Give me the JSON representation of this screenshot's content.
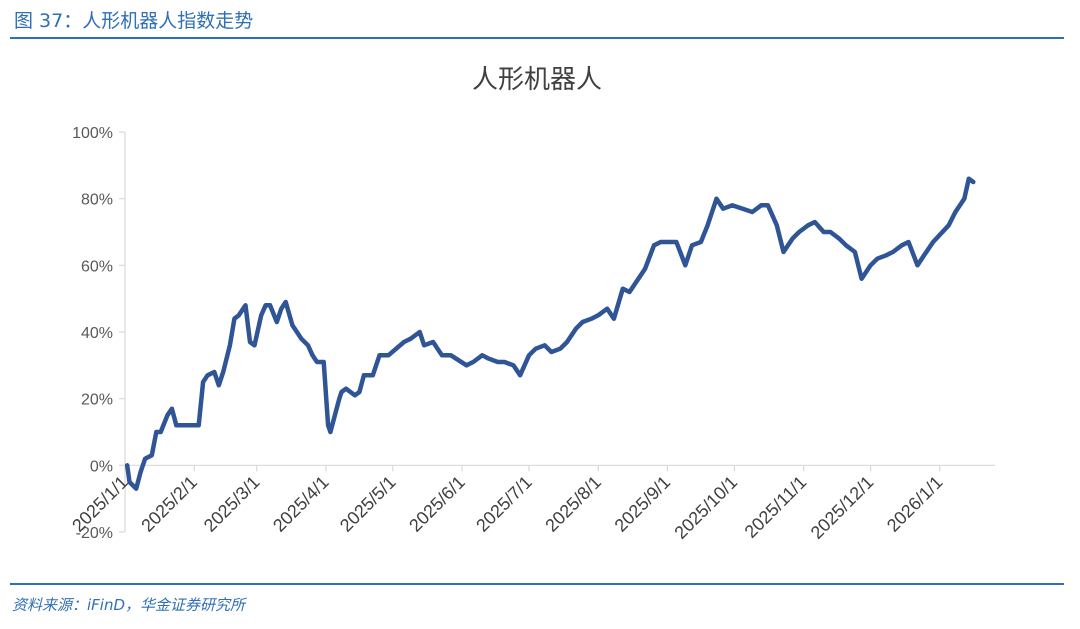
{
  "figure_label": "图 37：人形机器人指数走势",
  "source_note": "资料来源：iFinD，华金证券研究所",
  "colors": {
    "line": "#2f5597",
    "accent": "#2f6fb6",
    "axis": "#d9d9d9"
  },
  "chart_data": {
    "type": "line",
    "title": "人形机器人",
    "xlabel": "",
    "ylabel": "",
    "ylim": [
      -0.2,
      1.0
    ],
    "y_ticks": [
      -0.2,
      0.0,
      0.2,
      0.4,
      0.6,
      0.8,
      1.0
    ],
    "y_tick_labels": [
      "-20%",
      "0%",
      "20%",
      "40%",
      "60%",
      "80%",
      "100%"
    ],
    "x_ticks": [
      "2025/1/1",
      "2025/2/1",
      "2025/3/1",
      "2025/4/1",
      "2025/5/1",
      "2025/6/1",
      "2025/7/1",
      "2025/8/1",
      "2025/9/1",
      "2025/10/1",
      "2025/11/1",
      "2025/12/1",
      "2026/1/1"
    ],
    "grid": false,
    "legend": "none",
    "series": [
      {
        "x": [
          "2025/1/2",
          "2025/1/3",
          "2025/1/6",
          "2025/1/8",
          "2025/1/10",
          "2025/1/13",
          "2025/1/15",
          "2025/1/17",
          "2025/1/20",
          "2025/1/22",
          "2025/1/24",
          "2025/1/27",
          "2025/2/3",
          "2025/2/5",
          "2025/2/7",
          "2025/2/10",
          "2025/2/12",
          "2025/2/14",
          "2025/2/17",
          "2025/2/19",
          "2025/2/21",
          "2025/2/24",
          "2025/2/26",
          "2025/2/28",
          "2025/3/3",
          "2025/3/5",
          "2025/3/7",
          "2025/3/10",
          "2025/3/12",
          "2025/3/14",
          "2025/3/17",
          "2025/3/19",
          "2025/3/21",
          "2025/3/24",
          "2025/3/26",
          "2025/3/28",
          "2025/3/31",
          "2025/4/2",
          "2025/4/3",
          "2025/4/7",
          "2025/4/8",
          "2025/4/10",
          "2025/4/14",
          "2025/4/16",
          "2025/4/18",
          "2025/4/22",
          "2025/4/25",
          "2025/4/29",
          "2025/5/6",
          "2025/5/9",
          "2025/5/13",
          "2025/5/15",
          "2025/5/19",
          "2025/5/21",
          "2025/5/23",
          "2025/5/27",
          "2025/6/3",
          "2025/6/6",
          "2025/6/10",
          "2025/6/13",
          "2025/6/17",
          "2025/6/20",
          "2025/6/24",
          "2025/6/27",
          "2025/7/1",
          "2025/7/4",
          "2025/7/8",
          "2025/7/11",
          "2025/7/15",
          "2025/7/18",
          "2025/7/22",
          "2025/7/25",
          "2025/7/29",
          "2025/8/1",
          "2025/8/5",
          "2025/8/8",
          "2025/8/12",
          "2025/8/15",
          "2025/8/19",
          "2025/8/22",
          "2025/8/26",
          "2025/8/29",
          "2025/9/2",
          "2025/9/5",
          "2025/9/9",
          "2025/9/12",
          "2025/9/16",
          "2025/9/19",
          "2025/9/23",
          "2025/9/26",
          "2025/9/30",
          "2025/10/9",
          "2025/10/13",
          "2025/10/16",
          "2025/10/20",
          "2025/10/23",
          "2025/10/27",
          "2025/10/30",
          "2025/11/3",
          "2025/11/6",
          "2025/11/10",
          "2025/11/13",
          "2025/11/17",
          "2025/11/20",
          "2025/11/24",
          "2025/11/27",
          "2025/12/1",
          "2025/12/4",
          "2025/12/8",
          "2025/12/11",
          "2025/12/15",
          "2025/12/18",
          "2025/12/22",
          "2025/12/25",
          "2025/12/29",
          "2026/1/5",
          "2026/1/8",
          "2026/1/12",
          "2026/1/14",
          "2026/1/16"
        ],
        "values": [
          0.0,
          -0.05,
          -0.07,
          -0.02,
          0.02,
          0.03,
          0.1,
          0.1,
          0.15,
          0.17,
          0.12,
          0.12,
          0.12,
          0.25,
          0.27,
          0.28,
          0.24,
          0.28,
          0.36,
          0.44,
          0.45,
          0.48,
          0.37,
          0.36,
          0.45,
          0.48,
          0.48,
          0.43,
          0.47,
          0.49,
          0.42,
          0.4,
          0.38,
          0.36,
          0.33,
          0.31,
          0.31,
          0.12,
          0.1,
          0.2,
          0.22,
          0.23,
          0.21,
          0.22,
          0.27,
          0.27,
          0.33,
          0.33,
          0.37,
          0.38,
          0.4,
          0.36,
          0.37,
          0.35,
          0.33,
          0.33,
          0.3,
          0.31,
          0.33,
          0.32,
          0.31,
          0.31,
          0.3,
          0.27,
          0.33,
          0.35,
          0.36,
          0.34,
          0.35,
          0.37,
          0.41,
          0.43,
          0.44,
          0.45,
          0.47,
          0.44,
          0.53,
          0.52,
          0.56,
          0.59,
          0.66,
          0.67,
          0.67,
          0.67,
          0.6,
          0.66,
          0.67,
          0.72,
          0.8,
          0.77,
          0.78,
          0.76,
          0.78,
          0.78,
          0.72,
          0.64,
          0.68,
          0.7,
          0.72,
          0.73,
          0.7,
          0.7,
          0.68,
          0.66,
          0.64,
          0.56,
          0.6,
          0.62,
          0.63,
          0.64,
          0.66,
          0.67,
          0.6,
          0.63,
          0.67,
          0.72,
          0.76,
          0.8,
          0.86,
          0.85
        ]
      }
    ]
  }
}
